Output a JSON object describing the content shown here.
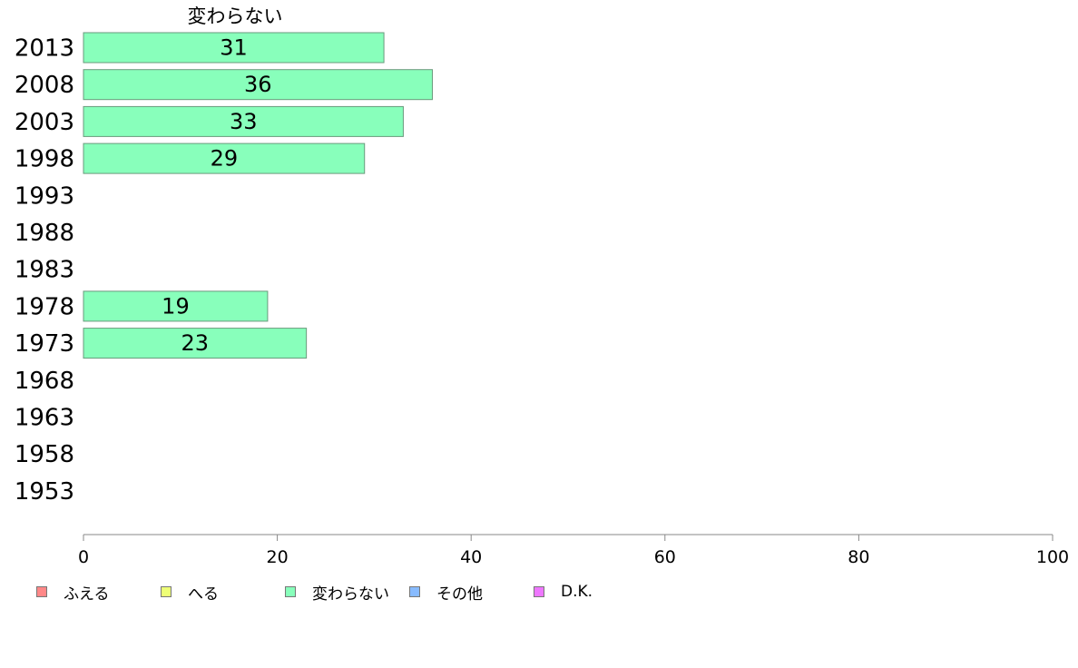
{
  "chart_data": {
    "type": "bar",
    "orientation": "horizontal",
    "title": "変わらない",
    "categories": [
      "2013",
      "2008",
      "2003",
      "1998",
      "1993",
      "1988",
      "1983",
      "1978",
      "1973",
      "1968",
      "1963",
      "1958",
      "1953"
    ],
    "series": [
      {
        "name": "変わらない",
        "color": "#88ffbb",
        "values": [
          31,
          36,
          33,
          29,
          null,
          null,
          null,
          19,
          23,
          null,
          null,
          null,
          null
        ]
      }
    ],
    "xlim": [
      0,
      100
    ],
    "xticks": [
      0,
      20,
      40,
      60,
      80,
      100
    ],
    "grid": false,
    "legend_position": "bottom-left"
  },
  "legend": [
    {
      "label": "ふえる",
      "color": "#ff8888"
    },
    {
      "label": "へる",
      "color": "#eeff77"
    },
    {
      "label": "変わらない",
      "color": "#88ffbb"
    },
    {
      "label": "その他",
      "color": "#88bbff"
    },
    {
      "label": "D.K.",
      "color": "#ee77ff"
    }
  ]
}
